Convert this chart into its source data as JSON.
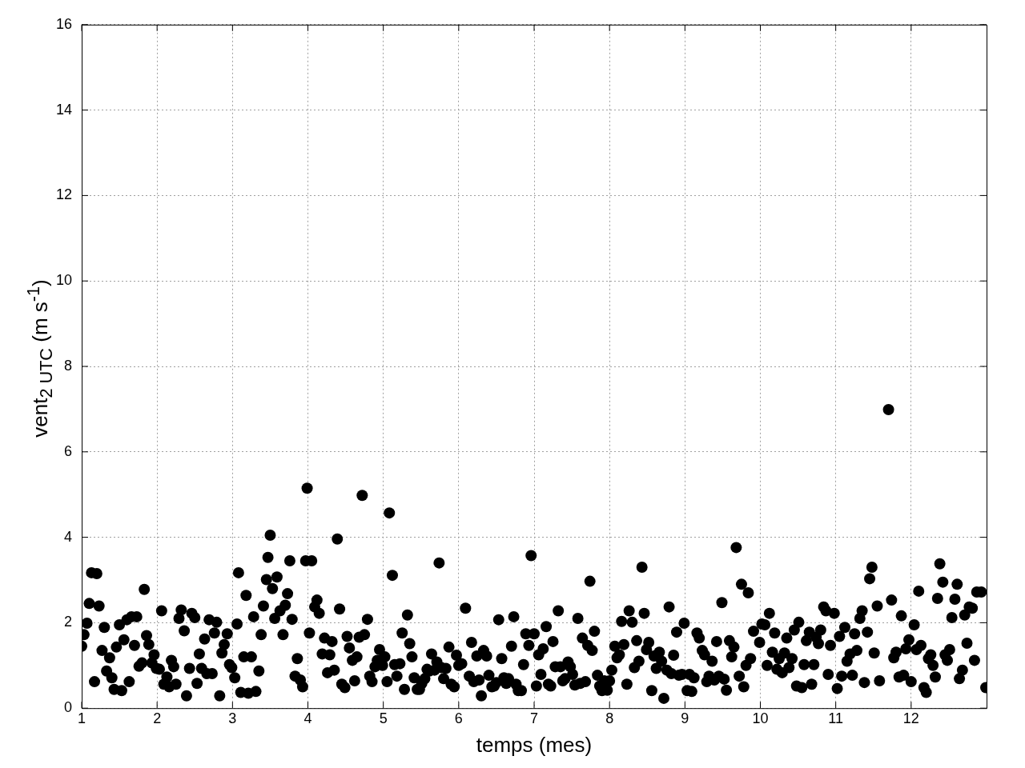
{
  "chart_data": {
    "type": "scatter",
    "xlabel": "temps (mes)",
    "ylabel": "vent$_{2 UTC}$ (m s$^{-1}$)",
    "xlim": [
      1,
      13
    ],
    "xticks": [
      1,
      2,
      3,
      4,
      5,
      6,
      7,
      8,
      9,
      10,
      11,
      12
    ],
    "ylim": [
      0,
      16
    ],
    "yticks": [
      0,
      2,
      4,
      6,
      8,
      10,
      12,
      14,
      16
    ],
    "grid": true,
    "legend": false,
    "marker": "circle",
    "series": [
      {
        "color": "#000000",
        "x": [
          1.0,
          1.03,
          1.07,
          1.1,
          1.13,
          1.17,
          1.2,
          1.23,
          1.27,
          1.3,
          1.33,
          1.37,
          1.4,
          1.43,
          1.46,
          1.5,
          1.53,
          1.56,
          1.6,
          1.63,
          1.66,
          1.7,
          1.73,
          1.76,
          1.8,
          1.83,
          1.86,
          1.89,
          1.93,
          1.96,
          1.99,
          2.03,
          2.06,
          2.09,
          2.13,
          2.16,
          2.19,
          2.22,
          2.25,
          2.29,
          2.32,
          2.36,
          2.39,
          2.43,
          2.46,
          2.5,
          2.53,
          2.56,
          2.59,
          2.63,
          2.66,
          2.69,
          2.73,
          2.76,
          2.79,
          2.83,
          2.86,
          2.89,
          2.93,
          2.96,
          2.99,
          3.03,
          3.06,
          3.08,
          3.11,
          3.15,
          3.18,
          3.21,
          3.25,
          3.28,
          3.31,
          3.35,
          3.38,
          3.41,
          3.45,
          3.47,
          3.5,
          3.53,
          3.56,
          3.59,
          3.63,
          3.67,
          3.7,
          3.73,
          3.76,
          3.79,
          3.83,
          3.86,
          3.9,
          3.93,
          3.97,
          3.99,
          4.02,
          4.05,
          4.09,
          4.12,
          4.15,
          4.19,
          4.22,
          4.26,
          4.29,
          4.32,
          4.35,
          4.39,
          4.42,
          4.45,
          4.49,
          4.52,
          4.55,
          4.59,
          4.62,
          4.65,
          4.68,
          4.72,
          4.75,
          4.79,
          4.82,
          4.85,
          4.89,
          4.92,
          4.95,
          4.99,
          5.02,
          5.05,
          5.08,
          5.12,
          5.15,
          5.18,
          5.22,
          5.25,
          5.28,
          5.32,
          5.35,
          5.38,
          5.41,
          5.45,
          5.48,
          5.51,
          5.55,
          5.58,
          5.61,
          5.64,
          5.68,
          5.71,
          5.74,
          5.77,
          5.8,
          5.83,
          5.87,
          5.9,
          5.94,
          5.97,
          6.0,
          6.04,
          6.09,
          6.14,
          6.17,
          6.2,
          6.24,
          6.27,
          6.3,
          6.33,
          6.37,
          6.4,
          6.44,
          6.47,
          6.5,
          6.53,
          6.57,
          6.6,
          6.63,
          6.66,
          6.7,
          6.73,
          6.76,
          6.79,
          6.83,
          6.86,
          6.89,
          6.93,
          6.96,
          7.0,
          7.03,
          7.06,
          7.09,
          7.12,
          7.16,
          7.19,
          7.22,
          7.25,
          7.28,
          7.32,
          7.35,
          7.38,
          7.41,
          7.45,
          7.48,
          7.51,
          7.54,
          7.58,
          7.61,
          7.64,
          7.68,
          7.71,
          7.74,
          7.77,
          7.8,
          7.84,
          7.87,
          7.9,
          7.93,
          7.97,
          8.0,
          8.03,
          8.07,
          8.1,
          8.13,
          8.16,
          8.19,
          8.23,
          8.26,
          8.3,
          8.33,
          8.36,
          8.39,
          8.43,
          8.46,
          8.49,
          8.52,
          8.56,
          8.59,
          8.62,
          8.66,
          8.69,
          8.72,
          8.76,
          8.79,
          8.82,
          8.85,
          8.89,
          8.92,
          8.96,
          8.99,
          9.03,
          9.06,
          9.09,
          9.12,
          9.16,
          9.19,
          9.23,
          9.26,
          9.29,
          9.32,
          9.36,
          9.39,
          9.42,
          9.45,
          9.49,
          9.52,
          9.55,
          9.59,
          9.62,
          9.65,
          9.68,
          9.72,
          9.75,
          9.78,
          9.81,
          9.84,
          9.87,
          9.91,
          9.99,
          10.02,
          10.06,
          10.09,
          10.12,
          10.16,
          10.19,
          10.22,
          10.25,
          10.29,
          10.32,
          10.35,
          10.38,
          10.42,
          10.45,
          10.48,
          10.51,
          10.55,
          10.58,
          10.61,
          10.65,
          10.68,
          10.71,
          10.74,
          10.77,
          10.8,
          10.84,
          10.87,
          10.9,
          10.93,
          10.98,
          11.02,
          11.05,
          11.08,
          11.12,
          11.15,
          11.19,
          11.22,
          11.25,
          11.28,
          11.32,
          11.35,
          11.38,
          11.42,
          11.45,
          11.48,
          11.51,
          11.55,
          11.58,
          11.7,
          11.74,
          11.77,
          11.8,
          11.84,
          11.87,
          11.9,
          11.93,
          11.97,
          12.0,
          12.04,
          12.07,
          12.1,
          12.13,
          12.17,
          12.2,
          12.23,
          12.26,
          12.29,
          12.32,
          12.35,
          12.38,
          12.42,
          12.45,
          12.48,
          12.51,
          12.54,
          12.58,
          12.61,
          12.64,
          12.68,
          12.71,
          12.74,
          12.77,
          12.81,
          12.84,
          12.87,
          12.93,
          12.99
        ],
        "values": [
          1.45,
          1.72,
          1.99,
          2.45,
          3.17,
          0.62,
          3.15,
          2.39,
          1.35,
          1.89,
          0.87,
          1.18,
          0.71,
          0.44,
          1.43,
          1.95,
          0.41,
          1.6,
          2.07,
          0.62,
          2.14,
          1.47,
          2.14,
          0.98,
          1.06,
          2.78,
          1.7,
          1.49,
          1.06,
          1.25,
          0.93,
          0.91,
          2.28,
          0.56,
          0.73,
          0.5,
          1.12,
          0.97,
          0.56,
          2.1,
          2.3,
          1.81,
          0.29,
          0.93,
          2.22,
          2.12,
          0.58,
          1.27,
          0.93,
          1.62,
          0.81,
          2.07,
          0.81,
          1.76,
          2.01,
          0.29,
          1.29,
          1.49,
          1.74,
          1.02,
          0.95,
          0.71,
          1.97,
          3.17,
          0.37,
          1.2,
          2.64,
          0.35,
          1.2,
          2.14,
          0.39,
          0.87,
          1.72,
          2.39,
          3.01,
          3.53,
          4.05,
          2.8,
          2.1,
          3.07,
          2.28,
          1.72,
          2.41,
          2.68,
          3.45,
          2.08,
          0.75,
          1.16,
          0.66,
          0.5,
          3.45,
          5.15,
          1.76,
          3.45,
          2.37,
          2.53,
          2.22,
          1.27,
          1.64,
          0.83,
          1.25,
          1.56,
          0.89,
          3.96,
          2.32,
          0.56,
          0.48,
          1.68,
          1.41,
          1.12,
          0.64,
          1.2,
          1.66,
          4.98,
          1.72,
          2.08,
          0.75,
          0.62,
          0.97,
          1.12,
          1.37,
          1.0,
          1.2,
          0.62,
          4.57,
          3.11,
          1.02,
          0.75,
          1.04,
          1.76,
          0.44,
          2.18,
          1.51,
          1.2,
          0.71,
          0.44,
          0.44,
          0.58,
          0.69,
          0.91,
          0.87,
          1.27,
          0.89,
          1.08,
          3.4,
          0.95,
          0.69,
          0.93,
          1.43,
          0.56,
          0.5,
          1.24,
          1.0,
          1.04,
          2.34,
          0.75,
          1.54,
          0.62,
          1.22,
          0.66,
          0.29,
          1.35,
          1.22,
          0.77,
          0.5,
          0.52,
          0.6,
          2.07,
          1.16,
          0.71,
          0.58,
          0.69,
          1.45,
          2.14,
          0.56,
          0.41,
          0.41,
          1.02,
          1.74,
          1.47,
          3.57,
          1.74,
          0.52,
          1.25,
          0.79,
          1.39,
          1.91,
          0.56,
          0.52,
          1.56,
          0.97,
          2.28,
          0.97,
          0.64,
          0.69,
          1.08,
          0.97,
          0.79,
          0.54,
          2.1,
          0.58,
          1.64,
          0.62,
          1.47,
          2.97,
          1.35,
          1.8,
          0.77,
          0.52,
          0.41,
          0.64,
          0.42,
          0.64,
          0.89,
          1.45,
          1.18,
          1.25,
          2.03,
          1.49,
          0.56,
          2.28,
          2.01,
          0.95,
          1.58,
          1.1,
          3.3,
          2.22,
          1.37,
          1.54,
          0.41,
          1.22,
          0.93,
          1.31,
          1.1,
          0.23,
          0.89,
          2.37,
          0.81,
          1.24,
          1.78,
          0.77,
          0.79,
          1.99,
          0.41,
          0.79,
          0.39,
          0.71,
          1.76,
          1.64,
          1.35,
          1.25,
          0.62,
          0.75,
          1.1,
          0.66,
          1.56,
          0.75,
          2.47,
          0.68,
          0.42,
          1.58,
          1.2,
          1.43,
          3.76,
          0.75,
          2.9,
          0.5,
          1.0,
          2.7,
          1.16,
          1.8,
          1.54,
          1.97,
          1.95,
          1.0,
          2.22,
          1.31,
          1.76,
          0.91,
          1.16,
          0.83,
          1.29,
          1.64,
          0.95,
          1.16,
          1.83,
          0.52,
          2.01,
          0.48,
          1.02,
          1.58,
          1.78,
          0.56,
          1.02,
          1.66,
          1.51,
          1.83,
          2.37,
          2.28,
          0.79,
          1.47,
          2.22,
          0.46,
          1.68,
          0.75,
          1.89,
          1.1,
          1.27,
          0.77,
          1.74,
          1.35,
          2.1,
          2.28,
          0.6,
          1.78,
          3.03,
          3.3,
          1.29,
          2.39,
          0.64,
          6.99,
          2.53,
          1.18,
          1.31,
          0.73,
          2.16,
          0.77,
          1.39,
          1.6,
          0.62,
          1.95,
          1.37,
          2.74,
          1.47,
          0.48,
          0.37,
          1.16,
          1.25,
          1.0,
          0.73,
          2.57,
          3.38,
          2.95,
          1.25,
          1.12,
          1.37,
          2.12,
          2.55,
          2.9,
          0.69,
          0.89,
          2.18,
          1.52,
          2.37,
          2.34,
          1.12,
          2.72,
          2.72,
          0.48
        ]
      }
    ]
  }
}
